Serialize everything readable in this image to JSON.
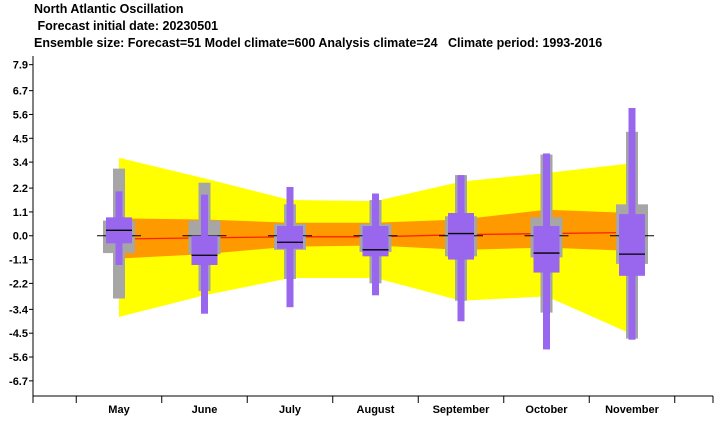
{
  "chart_data": {
    "type": "box",
    "title": "North Atlantic Oscillation",
    "subtitle": " Forecast initial date: 20230501",
    "info": "Ensemble size: Forecast=51 Model climate=600 Analysis climate=24   Climate period: 1993-2016",
    "categories": [
      "May",
      "June",
      "July",
      "August",
      "September",
      "October",
      "November"
    ],
    "ytick_labels": [
      "7.9",
      "6.7",
      "5.6",
      "4.5",
      "3.4",
      "2.2",
      "1.1",
      "0.0",
      "-1.1",
      "-2.2",
      "-3.4",
      "-4.5",
      "-5.6",
      "-6.7"
    ],
    "ylim": [
      -7.4,
      8.3
    ],
    "colors": {
      "climate_outer": "#ffff00",
      "climate_inner": "#ff9900",
      "analysis_box": "#a6a6a6",
      "forecast_box": "#9966ee",
      "median_line": "#ff2200",
      "median_mark": "#000000"
    },
    "model_climate": {
      "p1": [
        -3.75,
        -2.75,
        -1.95,
        -1.95,
        -3.0,
        -2.8,
        -4.55
      ],
      "p25": [
        -1.05,
        -0.85,
        -0.5,
        -0.45,
        -0.65,
        -0.55,
        -0.7
      ],
      "median": [
        -0.15,
        -0.1,
        -0.05,
        -0.05,
        0.05,
        0.1,
        0.15
      ],
      "p75": [
        0.8,
        0.75,
        0.6,
        0.6,
        0.75,
        1.2,
        1.05
      ],
      "p99": [
        3.6,
        2.65,
        1.65,
        1.6,
        2.5,
        2.9,
        3.35
      ]
    },
    "analysis_climate": [
      {
        "p1": -2.9,
        "p25": -0.8,
        "median": 0.0,
        "p75": 0.7,
        "p99": 3.1
      },
      {
        "p1": -2.55,
        "p25": -0.85,
        "median": 0.0,
        "p75": 0.7,
        "p99": 2.45
      },
      {
        "p1": -2.0,
        "p25": -0.65,
        "median": 0.0,
        "p75": 0.55,
        "p99": 1.45
      },
      {
        "p1": -2.2,
        "p25": -0.75,
        "median": 0.0,
        "p75": 0.55,
        "p99": 1.65
      },
      {
        "p1": -3.0,
        "p25": -0.95,
        "median": 0.0,
        "p75": 0.9,
        "p99": 2.8
      },
      {
        "p1": -3.55,
        "p25": -1.0,
        "median": 0.0,
        "p75": 0.85,
        "p99": 3.75
      },
      {
        "p1": -4.75,
        "p25": -1.3,
        "median": 0.0,
        "p75": 1.45,
        "p99": 4.8
      }
    ],
    "forecast": [
      {
        "min": -1.35,
        "p25": -0.35,
        "median": 0.25,
        "p75": 0.85,
        "max": 2.05
      },
      {
        "min": -3.6,
        "p25": -1.35,
        "median": -0.9,
        "p75": 0.0,
        "max": 1.9
      },
      {
        "min": -3.3,
        "p25": -0.6,
        "median": -0.3,
        "p75": 0.45,
        "max": 2.25
      },
      {
        "min": -2.75,
        "p25": -0.95,
        "median": -0.65,
        "p75": 0.45,
        "max": 1.95
      },
      {
        "min": -3.95,
        "p25": -1.1,
        "median": 0.1,
        "p75": 1.05,
        "max": 2.8
      },
      {
        "min": -5.25,
        "p25": -1.7,
        "median": -0.8,
        "p75": 0.45,
        "max": 3.8
      },
      {
        "min": -4.8,
        "p25": -1.85,
        "median": -0.85,
        "p75": 1.0,
        "max": 5.9
      }
    ]
  }
}
